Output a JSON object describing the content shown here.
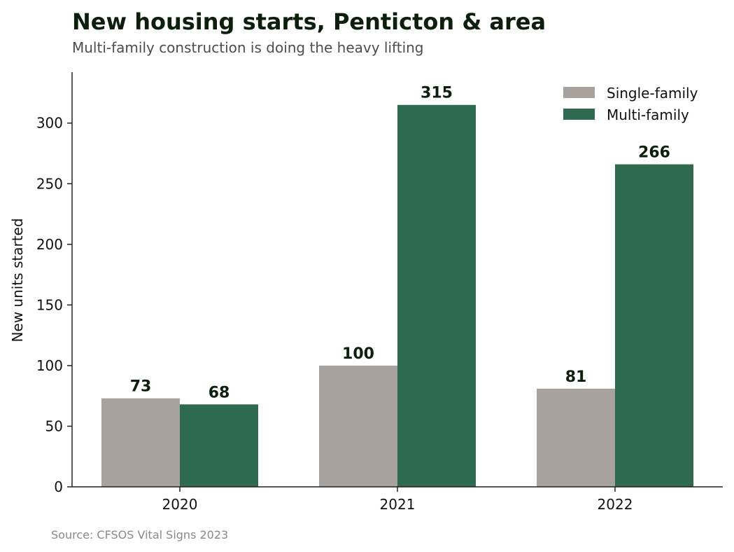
{
  "chart_data": {
    "type": "bar",
    "title": "New housing starts, Penticton & area",
    "subtitle": "Multi-family construction is doing the heavy lifting",
    "xlabel": "",
    "ylabel": "New units started",
    "categories": [
      "2020",
      "2021",
      "2022"
    ],
    "series": [
      {
        "name": "Single-family",
        "color": "#a7a29e",
        "values": [
          73,
          100,
          81
        ]
      },
      {
        "name": "Multi-family",
        "color": "#2e6a50",
        "values": [
          68,
          315,
          266
        ]
      }
    ],
    "ylim": [
      0,
      342
    ],
    "yticks": [
      0,
      50,
      100,
      150,
      200,
      250,
      300
    ],
    "grid": false,
    "legend_position": "top-right",
    "data_labels": true,
    "source": "Source: CFSOS Vital Signs 2023"
  }
}
